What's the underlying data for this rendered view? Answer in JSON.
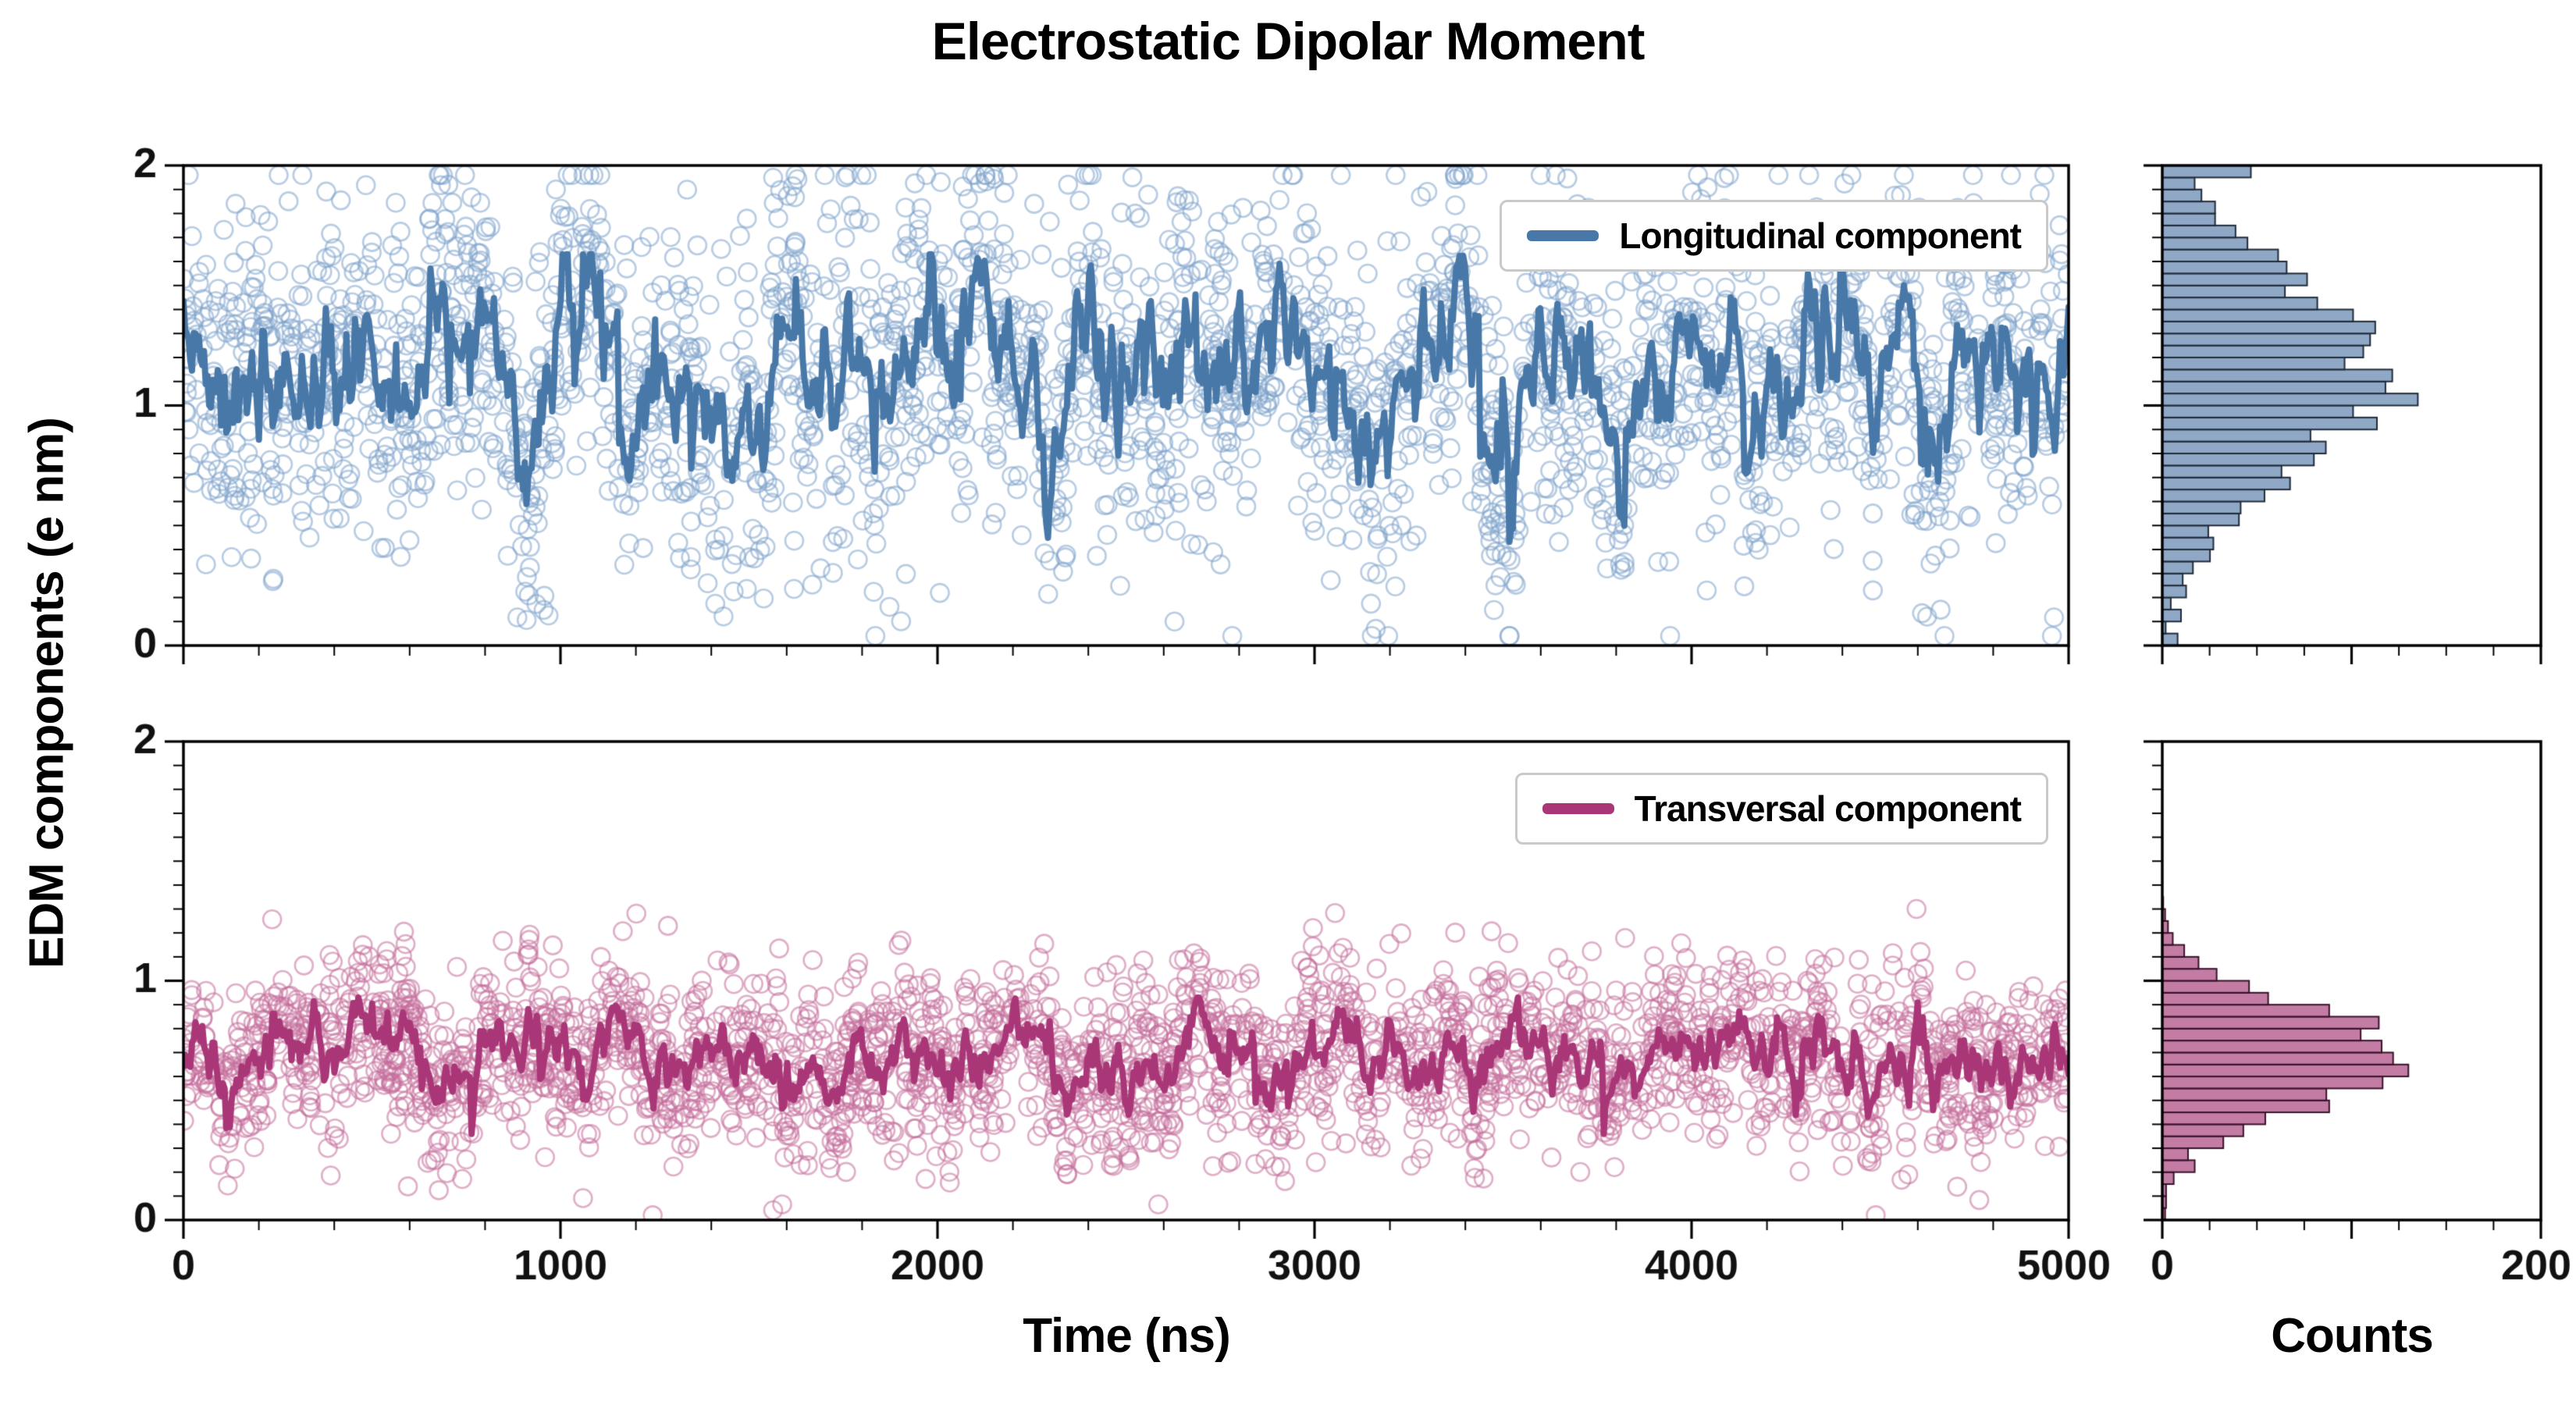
{
  "figure": {
    "title": "Electrostatic Dipolar Moment",
    "xlabel": "Time (ns)",
    "ylabel": "EDM components (e nm)",
    "counts_label": "Counts",
    "background": "#ffffff",
    "text_color": "#000000"
  },
  "chart_data": [
    {
      "type": "scatter",
      "overlay": "line",
      "name": "Longitudinal component",
      "line_color": "#4878A8",
      "scatter_color": "rgba(125,162,203,0.55)",
      "hist_fill": "rgba(130,158,192,0.9)",
      "hist_edge": "#202B38",
      "x_range": [
        0,
        5000
      ],
      "y_range": [
        0,
        2
      ],
      "x_ticks": [
        0,
        1000,
        2000,
        3000,
        4000,
        5000
      ],
      "y_ticks": [
        0,
        1,
        2
      ],
      "x_minor_step": 200,
      "y_minor_step": 0.1,
      "counts_range": [
        0,
        200
      ],
      "counts_ticks": [
        0,
        100,
        200
      ],
      "counts_tick_labels": [
        "0",
        "",
        "200"
      ],
      "counts_minor_step": 25,
      "hist_bins": 40,
      "hist_peak_count": 135,
      "show_x_labels": false,
      "synthesis": {
        "seed": 7,
        "n_line": 1100,
        "line_mean": 1.16,
        "ar": 0.86,
        "line_noise": 0.1,
        "dip_prob": 0.02,
        "dip_depth": 0.55,
        "line_clip": [
          0.42,
          1.63
        ],
        "n_scatter": 2600,
        "scatter_sd": 0.34,
        "scatter_clip": [
          0.04,
          1.96
        ]
      }
    },
    {
      "type": "scatter",
      "overlay": "line",
      "name": "Transversal component",
      "line_color": "#A93778",
      "scatter_color": "rgba(196,110,155,0.55)",
      "hist_fill": "rgba(189,110,154,0.9)",
      "hist_edge": "#38122A",
      "x_range": [
        0,
        5000
      ],
      "y_range": [
        0,
        2
      ],
      "x_ticks": [
        0,
        1000,
        2000,
        3000,
        4000,
        5000
      ],
      "y_ticks": [
        0,
        1,
        2
      ],
      "x_minor_step": 200,
      "y_minor_step": 0.1,
      "counts_range": [
        0,
        200
      ],
      "counts_ticks": [
        0,
        100,
        200
      ],
      "counts_tick_labels": [
        "0",
        "",
        "200"
      ],
      "counts_minor_step": 25,
      "hist_bins": 40,
      "hist_peak_count": 130,
      "show_x_labels": true,
      "synthesis": {
        "seed": 19,
        "n_line": 1100,
        "line_mean": 0.7,
        "ar": 0.84,
        "line_noise": 0.05,
        "dip_prob": 0.015,
        "dip_depth": 0.3,
        "line_clip": [
          0.36,
          0.93
        ],
        "n_scatter": 2600,
        "scatter_sd": 0.18,
        "scatter_clip": [
          0.02,
          1.3
        ]
      }
    }
  ]
}
